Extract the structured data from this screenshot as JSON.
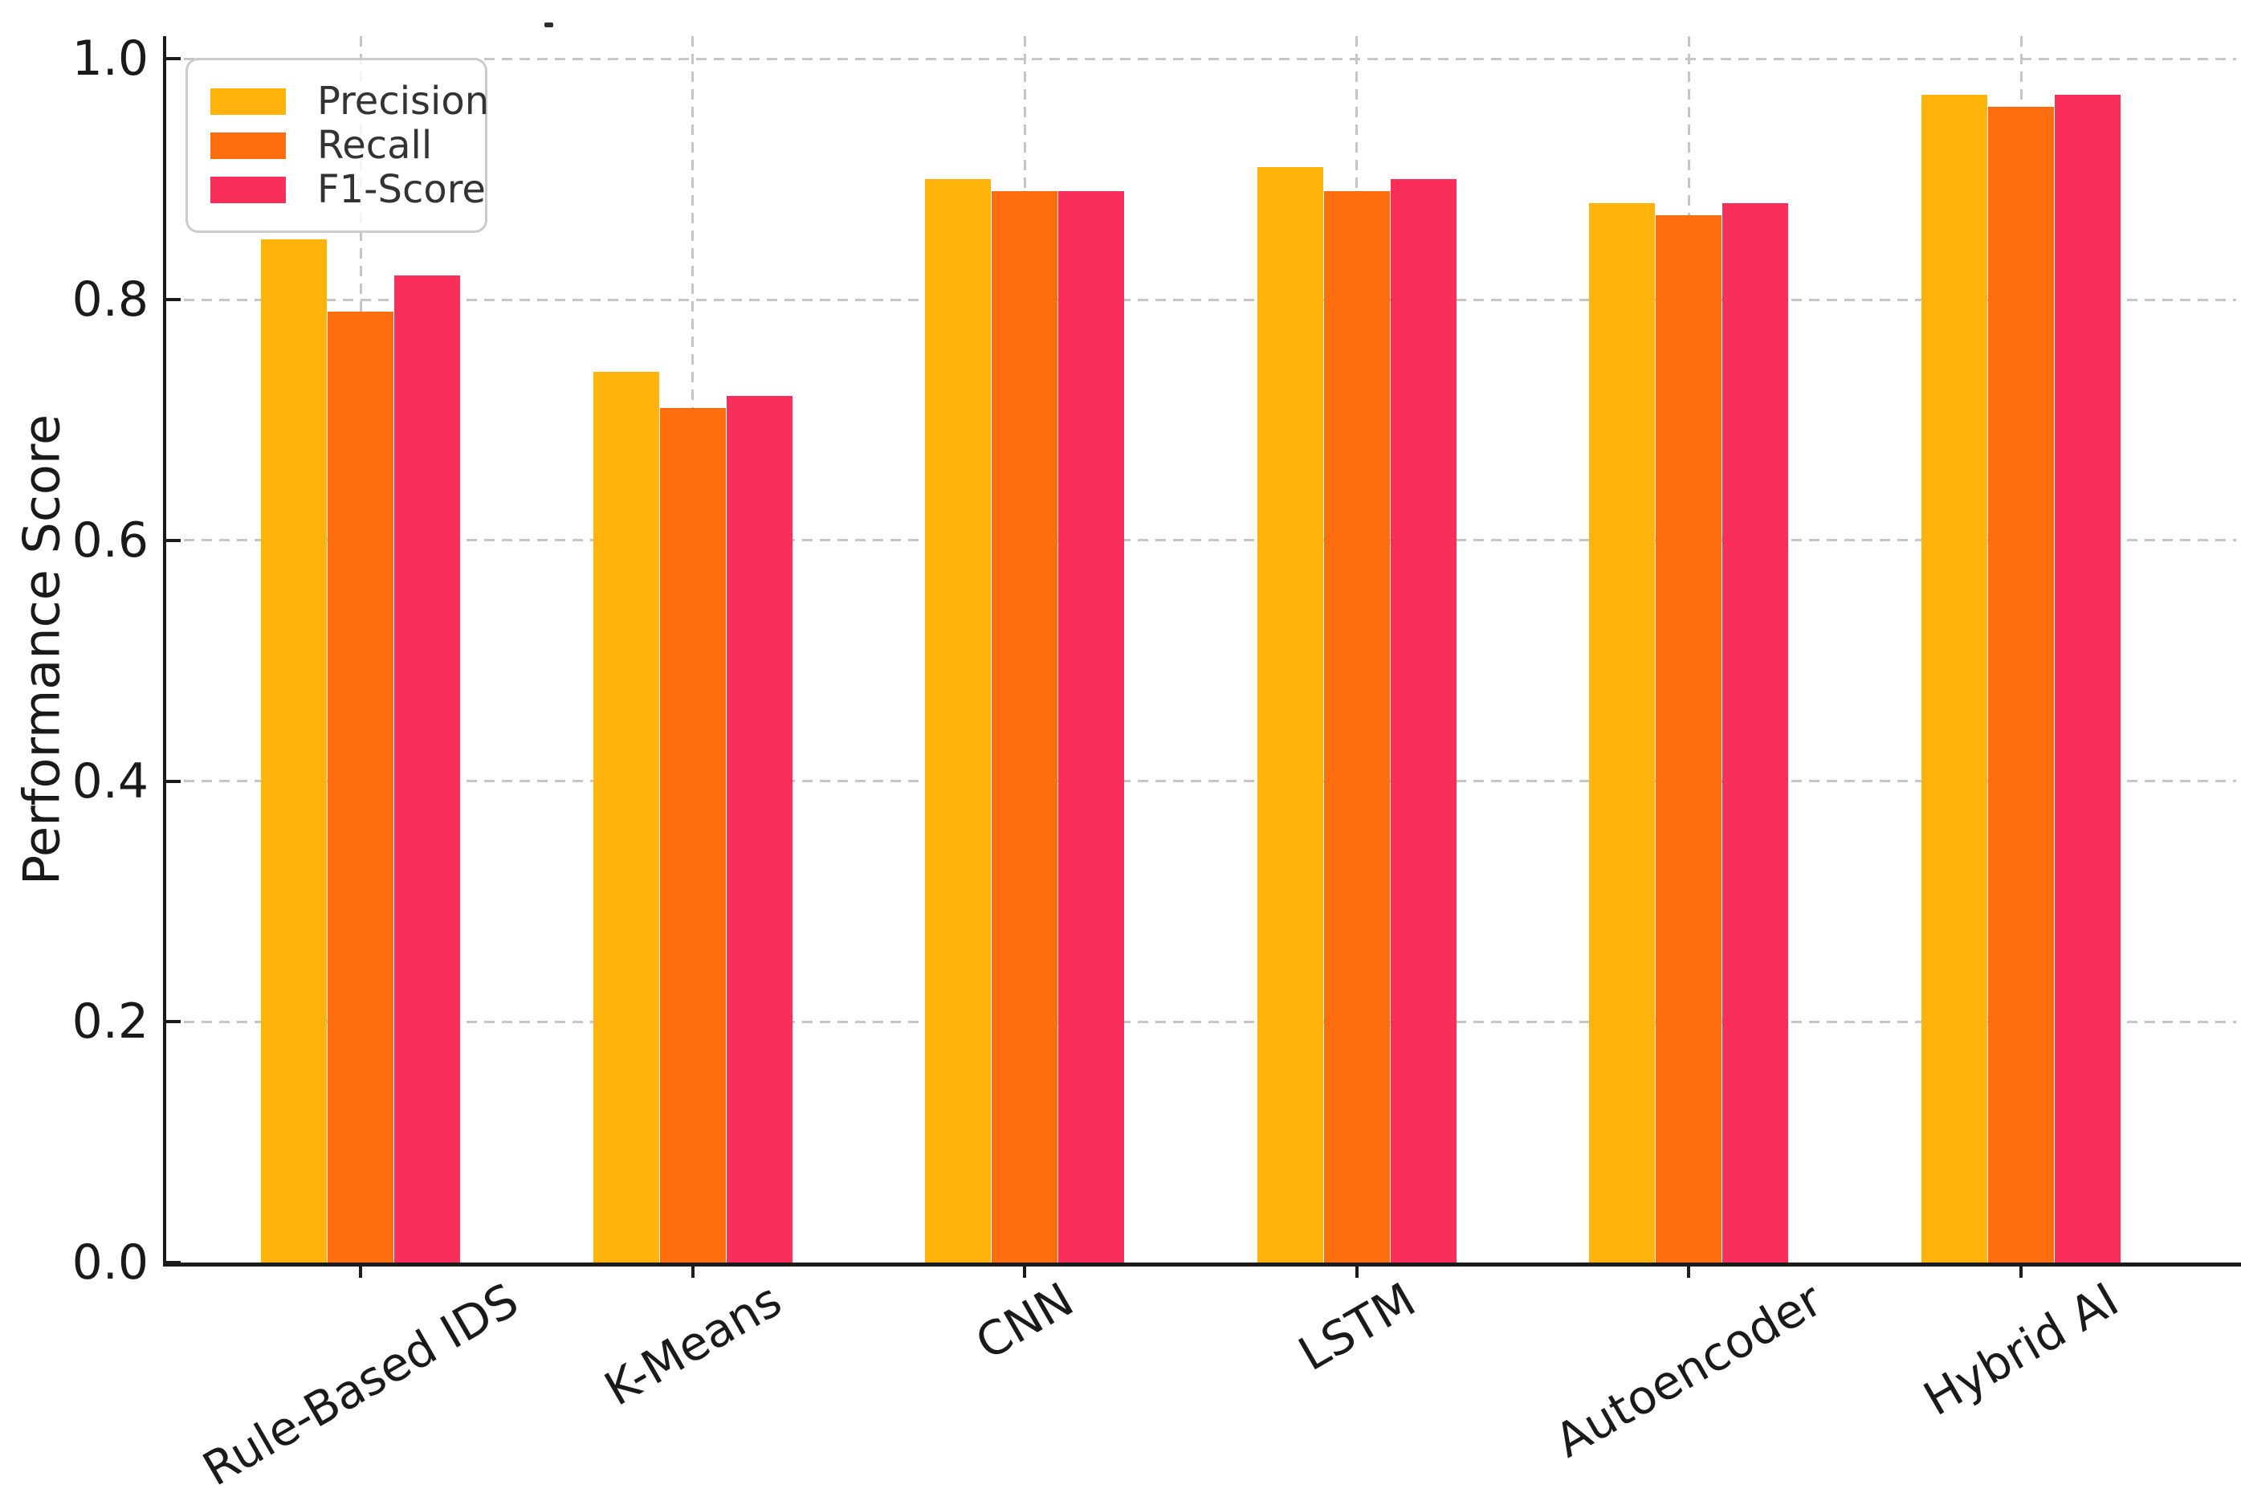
{
  "chart_data": {
    "type": "bar",
    "title": "",
    "xlabel": "",
    "ylabel": "Performance Score",
    "categories": [
      "Rule-Based IDS",
      "K-Means",
      "CNN",
      "LSTM",
      "Autoencoder",
      "Hybrid AI"
    ],
    "series": [
      {
        "name": "Precision",
        "color": "#FFB30B",
        "values": [
          0.85,
          0.74,
          0.9,
          0.91,
          0.88,
          0.97
        ]
      },
      {
        "name": "Recall",
        "color": "#FF6E0E",
        "values": [
          0.79,
          0.71,
          0.89,
          0.89,
          0.87,
          0.96
        ]
      },
      {
        "name": "F1-Score",
        "color": "#F92E5A",
        "values": [
          0.82,
          0.72,
          0.89,
          0.9,
          0.88,
          0.97
        ]
      }
    ],
    "ylim": [
      0,
      1.019
    ],
    "yticks": [
      0.0,
      0.2,
      0.4,
      0.6,
      0.8,
      1.0
    ],
    "ytick_labels": [
      "0.0",
      "0.2",
      "0.4",
      "0.6",
      "0.8",
      "1.0"
    ],
    "grid": {
      "style": "dashed",
      "axes": "both",
      "color": "#C6C6C6"
    },
    "legend": {
      "position": "upper-left",
      "entries": [
        "Precision",
        "Recall",
        "F1-Score"
      ]
    }
  },
  "colors": {
    "background": "#FFFFFF",
    "axis": "#1B1B1B",
    "tick_text": "#1A1A1A",
    "grid": "#C6C6C6",
    "legend_border": "#CBCBCB",
    "legend_text": "#333333"
  }
}
